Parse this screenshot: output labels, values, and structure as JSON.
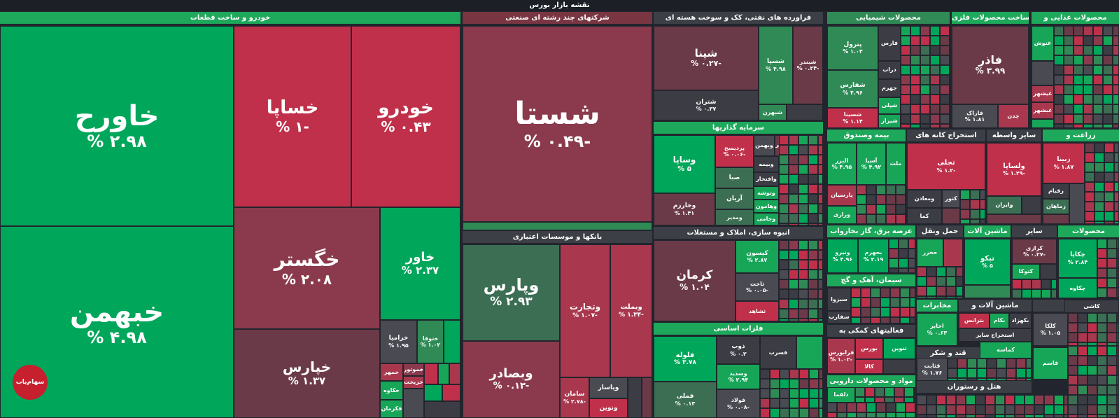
{
  "title": "نقشه بازار بورس",
  "sectors": {
    "auto": "خودرو و ساخت قطعات",
    "diversified": "شرکتهای چند رشته ای صنعتی",
    "oil": "فراورده های نفتی، کک و سوخت هسته ای",
    "chemical": "محصولات شیمیایی",
    "metal_products": "ساخت محصولات فلزی",
    "food": "محصولات غذایی و",
    "banks": "بانکها و موسسات اعتباری",
    "investments": "سرمایه گذاریها",
    "realestate": "انبوه سازی، املاک و مستغلات",
    "basic_metals": "فلزات اساسی",
    "insurance": "بیمه وصندوق",
    "mining": "استخراج کانه های",
    "other_intermediary": "سایر واسطه",
    "agri": "زراعت و",
    "utility": "عرضه برق، گاز بخارواب",
    "transport": "حمل ونقل",
    "machinery": "ماشین آلات",
    "other": "سایر",
    "products2": "محصولات",
    "cement": "سیمان، آهک و گچ",
    "telecom": "مخابرات",
    "machinery2": "ماشین آلات و",
    "construction": "ساخت",
    "aux": "فعالیتهای کمکی به",
    "sugar": "قند و شکر",
    "pharma": "مواد و محصولات دارویی",
    "hotel": "هتل و رستوران",
    "other_mining": "استخراج سایر"
  },
  "tiles": {
    "khavarh": {
      "sym": "خاورح",
      "chg": "% ۲.۹۸"
    },
    "khbahman": {
      "sym": "خبهمن",
      "chg": "% ۴.۹۸"
    },
    "khsapa": {
      "sym": "خساپا",
      "chg": "% ۱-"
    },
    "khodro": {
      "sym": "خودرو",
      "chg": "% ۰.۴۳"
    },
    "khgostar": {
      "sym": "خگستر",
      "chg": "% ۲.۰۸"
    },
    "khavar": {
      "sym": "خاور",
      "chg": "% ۲.۳۷"
    },
    "khepars": {
      "sym": "خپارس",
      "chg": "% ۱.۳۷"
    },
    "khzamia": {
      "sym": "خزامیا",
      "chg": "% ۱.۹۵"
    },
    "khotoga": {
      "sym": "ختوقا",
      "chg": "% ۱.۰۲"
    },
    "khamhar": {
      "sym": "خمهر",
      "chg": ""
    },
    "khmotor": {
      "sym": "خموتور",
      "chg": ""
    },
    "khrikht": {
      "sym": "خریخت",
      "chg": ""
    },
    "khkaveh": {
      "sym": "خکاوه",
      "chg": ""
    },
    "fkhmaran": {
      "sym": "فکرمان",
      "chg": ""
    },
    "shasta": {
      "sym": "شستا",
      "chg": "% ۰.۴۹-"
    },
    "vepars": {
      "sym": "وپارس",
      "chg": "% ۲.۹۳"
    },
    "vtejarat": {
      "sym": "وتجارت",
      "chg": "% ۱.۰۷-"
    },
    "vmelat": {
      "sym": "وبملت",
      "chg": "% ۱.۳۴-"
    },
    "vbsader": {
      "sym": "وبصادر",
      "chg": "% ۰.۱۳-"
    },
    "saman": {
      "sym": "سامان",
      "chg": "% ۲.۷۸-"
    },
    "vpasar": {
      "sym": "وپاسار",
      "chg": ""
    },
    "vnovin": {
      "sym": "ونوین",
      "chg": ""
    },
    "shepna": {
      "sym": "شپنا",
      "chg": "% ۰.۲۷-"
    },
    "shteran": {
      "sym": "شتران",
      "chg": "% ۰.۳۷"
    },
    "shesapa": {
      "sym": "شسپا",
      "chg": "% ۴.۹۸"
    },
    "shbandar": {
      "sym": "شبندر",
      "chg": "% ۰.۲۴-"
    },
    "shbehran": {
      "sym": "شبهرن",
      "chg": ""
    },
    "petrol": {
      "sym": "پترول",
      "chg": "% ۱.۰۴"
    },
    "fars": {
      "sym": "فارس",
      "chg": ""
    },
    "daraab": {
      "sym": "دراب",
      "chg": ""
    },
    "shfars": {
      "sym": "شفارس",
      "chg": "% ۴.۹۶"
    },
    "jahrom": {
      "sym": "جهرم",
      "chg": ""
    },
    "shepli": {
      "sym": "شپلی",
      "chg": ""
    },
    "shsina": {
      "sym": "شسینا",
      "chg": "% ۱.۱۴"
    },
    "shiraz": {
      "sym": "شیراز",
      "chg": ""
    },
    "fazar": {
      "sym": "فاذر",
      "chg": "% ۳.۹۹"
    },
    "faraak": {
      "sym": "فاراک",
      "chg": "% ۱.۸۱"
    },
    "chadan": {
      "sym": "چدن",
      "chg": ""
    },
    "ghoosh": {
      "sym": "غنوش",
      "chg": ""
    },
    "ghshahr": {
      "sym": "غیشهر",
      "chg": ""
    },
    "ghbeshahr": {
      "sym": "غبشهر",
      "chg": ""
    },
    "vsapa": {
      "sym": "وساپا",
      "chg": "% ۵"
    },
    "vkharazm": {
      "sym": "وخارزم",
      "chg": "% ۱.۴۱"
    },
    "pardis": {
      "sym": "پردیسح",
      "chg": "% ۰.۰۶-"
    },
    "vbahman": {
      "sym": "وبهمن",
      "chg": ""
    },
    "vbou": {
      "sym": "وبوعلی",
      "chg": ""
    },
    "vbime": {
      "sym": "وبیمه",
      "chg": ""
    },
    "seba": {
      "sym": "صبا",
      "chg": ""
    },
    "vaftkhar": {
      "sym": "وافتخار",
      "chg": ""
    },
    "vtoksha": {
      "sym": "وتوشه",
      "chg": ""
    },
    "arian": {
      "sym": "آریان",
      "chg": ""
    },
    "vmodir": {
      "sym": "ومدیر",
      "chg": ""
    },
    "vhamon": {
      "sym": "وهامون",
      "chg": ""
    },
    "vjami": {
      "sym": "وجامی",
      "chg": ""
    },
    "kerman": {
      "sym": "کرمان",
      "chg": "% ۱.۰۴"
    },
    "kisun": {
      "sym": "کیسون",
      "chg": "% ۲.۸۷"
    },
    "sakht": {
      "sym": "ثاخت",
      "chg": "% ۰.۰۵-"
    },
    "shahed": {
      "sym": "ثشاهد",
      "chg": ""
    },
    "fooladh": {
      "sym": "فلوله",
      "chg": "% ۳.۷۸"
    },
    "fmeli": {
      "sym": "فملی",
      "chg": "% ۰.۱۳"
    },
    "zob": {
      "sym": "ذوب",
      "chg": "% ۰.۲"
    },
    "vsadid": {
      "sym": "وسدید",
      "chg": "% ۲.۹۴"
    },
    "foolad": {
      "sym": "فولاد",
      "chg": "% ۰.۰۸-"
    },
    "fnsorb": {
      "sym": "فسرب",
      "chg": ""
    },
    "alborz": {
      "sym": "البرز",
      "chg": "% ۴.۹۵"
    },
    "asia": {
      "sym": "آسیا",
      "chg": "% ۴.۹۲"
    },
    "mellat": {
      "sym": "ملت",
      "chg": ""
    },
    "parsian": {
      "sym": "پارسیان",
      "chg": ""
    },
    "vazari": {
      "sym": "ورازی",
      "chg": ""
    },
    "tajli": {
      "sym": "تجلی",
      "chg": "% ۱.۲-"
    },
    "kavor": {
      "sym": "کنور",
      "chg": ""
    },
    "madan": {
      "sym": "ومعادن",
      "chg": ""
    },
    "kama": {
      "sym": "کما",
      "chg": ""
    },
    "vlsapa": {
      "sym": "ولساپا",
      "chg": "% ۱.۲۹-"
    },
    "vairan": {
      "sym": "وایران",
      "chg": ""
    },
    "zina": {
      "sym": "زبینا",
      "chg": "% ۱.۸۷"
    },
    "zaghiam": {
      "sym": "زقیام",
      "chg": ""
    },
    "zamahan": {
      "sym": "زماهان",
      "chg": ""
    },
    "vniroo": {
      "sym": "ونیرو",
      "chg": "% ۴.۹۶"
    },
    "bjahrom": {
      "sym": "بجهرم",
      "chg": "% ۲.۱۹"
    },
    "hkhazar": {
      "sym": "حخزر",
      "chg": ""
    },
    "tekno": {
      "sym": "تپکو",
      "chg": "% ۵"
    },
    "karazi": {
      "sym": "کرازی",
      "chg": "% ۰.۲۷-"
    },
    "katoka": {
      "sym": "کتوکا",
      "chg": ""
    },
    "chakapa": {
      "sym": "چکاپا",
      "chg": "% ۲.۸۴"
    },
    "chakan": {
      "sym": "چکاوه",
      "chg": ""
    },
    "sabzva": {
      "sym": "سبزوا",
      "chg": ""
    },
    "sefarb": {
      "sym": "سفارب",
      "chg": ""
    },
    "akhaber": {
      "sym": "اخابر",
      "chg": "% ۰.۶۳"
    },
    "bkam": {
      "sym": "بکام",
      "chg": ""
    },
    "btranes": {
      "sym": "بترانس",
      "chg": ""
    },
    "bkhiz": {
      "sym": "بکهزاد",
      "chg": ""
    },
    "kashi": {
      "sym": "کاشی",
      "chg": ""
    },
    "klakha": {
      "sym": "کلکا",
      "chg": "% ۱.۰۵"
    },
    "kgaz": {
      "sym": "کگاز",
      "chg": ""
    },
    "atlas": {
      "sym": "اتلس",
      "chg": ""
    },
    "faraburs": {
      "sym": "فرابورس",
      "chg": "% ۱.۰۲-"
    },
    "burs": {
      "sym": "بورس",
      "chg": ""
    },
    "kala": {
      "sym": "کالا",
      "chg": ""
    },
    "tnoin": {
      "sym": "تنوین",
      "chg": ""
    },
    "ghsabet": {
      "sym": "قثابت",
      "chg": "% ۱.۷۶"
    },
    "dlqma": {
      "sym": "دلقما",
      "chg": ""
    },
    "gordash": {
      "sym": "گردش",
      "chg": ""
    },
    "kamase": {
      "sym": "کماسه",
      "chg": ""
    },
    "qasem": {
      "sym": "قاسم",
      "chg": ""
    },
    "estakhraj": {
      "sym": "استخراج سایر",
      "chg": ""
    }
  },
  "logo": {
    "text": "سهام‌یاب"
  }
}
